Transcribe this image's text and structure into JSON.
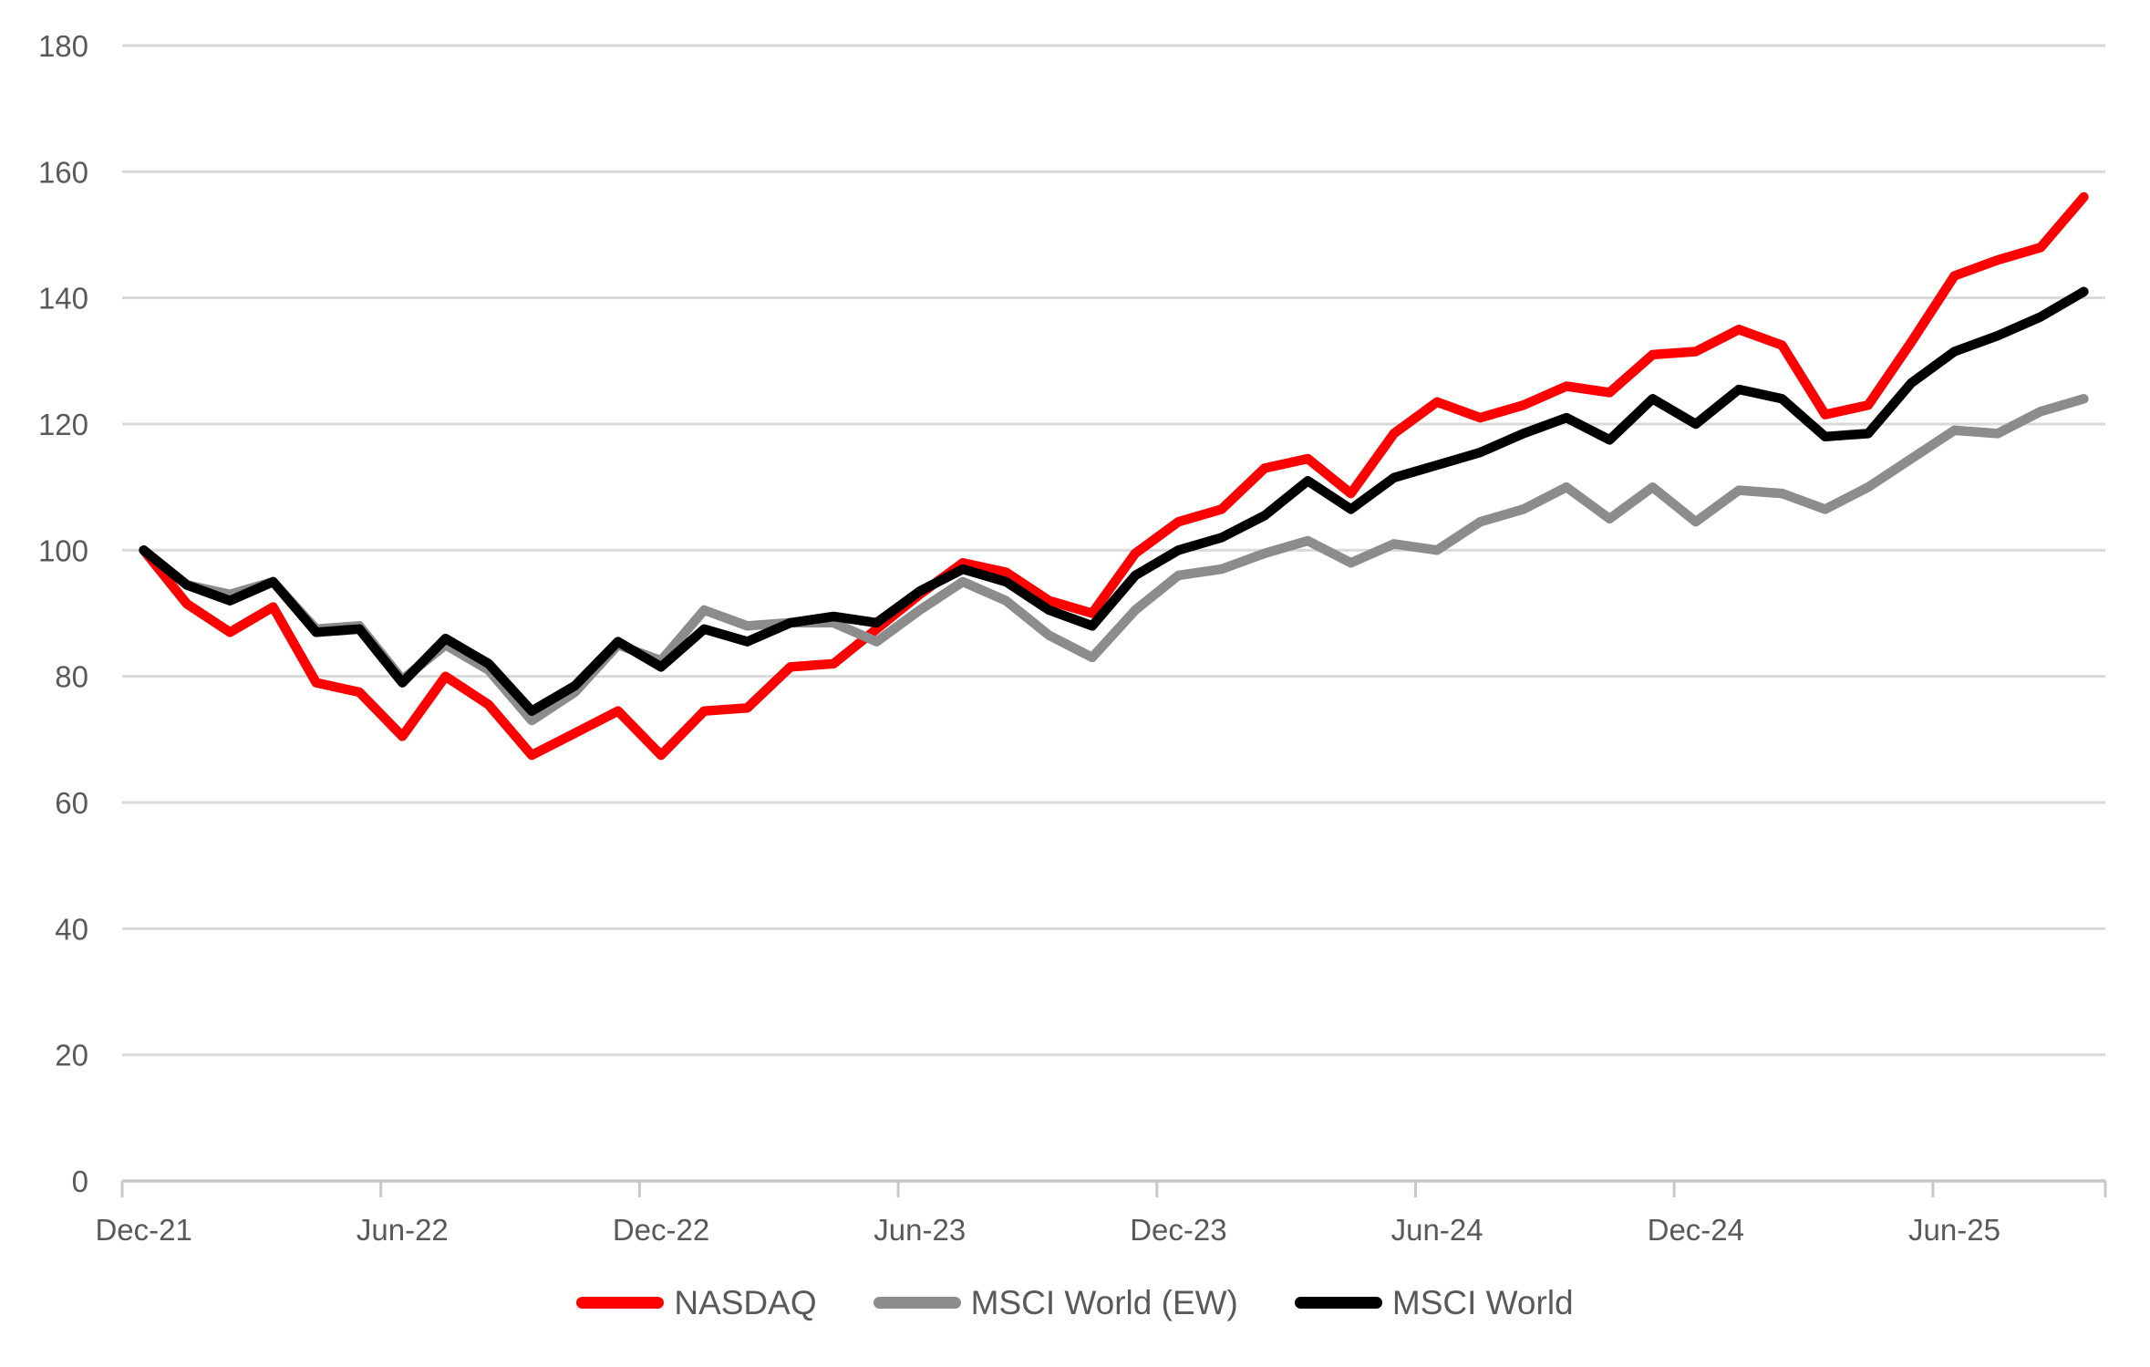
{
  "chart_data": {
    "type": "line",
    "categories": [
      "Dec-21",
      "Jan-22",
      "Feb-22",
      "Mar-22",
      "Apr-22",
      "May-22",
      "Jun-22",
      "Jul-22",
      "Aug-22",
      "Sep-22",
      "Oct-22",
      "Nov-22",
      "Dec-22",
      "Jan-23",
      "Feb-23",
      "Mar-23",
      "Apr-23",
      "May-23",
      "Jun-23",
      "Jul-23",
      "Aug-23",
      "Sep-23",
      "Oct-23",
      "Nov-23",
      "Dec-23",
      "Jan-24",
      "Feb-24",
      "Mar-24",
      "Apr-24",
      "May-24",
      "Jun-24",
      "Jul-24",
      "Aug-24",
      "Sep-24",
      "Oct-24",
      "Nov-24",
      "Dec-24",
      "Jan-25",
      "Feb-25",
      "Mar-25",
      "Apr-25",
      "May-25",
      "Jun-25",
      "Jul-25",
      "Aug-25",
      "Sep-25"
    ],
    "x_axis": {
      "tick_labels": [
        "Dec-21",
        "Jun-22",
        "Dec-22",
        "Jun-23",
        "Dec-23",
        "Jun-24",
        "Dec-24",
        "Jun-25"
      ],
      "label_every": 6
    },
    "y_axis": {
      "min": 0,
      "max": 180,
      "tick_step": 20,
      "tick_labels": [
        "0",
        "20",
        "40",
        "60",
        "80",
        "100",
        "120",
        "140",
        "160",
        "180"
      ]
    },
    "grid": "horizontal",
    "legend_position": "bottom",
    "colors": {
      "gridline": "#d9d9d9",
      "axis_line": "#c8c8c8",
      "axis_text": "#595959"
    },
    "series": [
      {
        "id": "nasdaq",
        "name": "NASDAQ",
        "color": "#ff0000",
        "values": [
          100,
          91.5,
          87,
          91,
          79,
          77.5,
          70.5,
          80,
          75.5,
          67.5,
          71,
          74.5,
          67.5,
          74.5,
          75,
          81.5,
          82,
          87.5,
          93,
          98,
          96.5,
          92,
          90,
          99.5,
          104.5,
          106.5,
          113,
          114.5,
          109,
          118.5,
          123.5,
          121,
          123,
          126,
          125,
          131,
          131.5,
          135,
          132.5,
          121.5,
          123,
          133,
          143.5,
          146,
          148,
          156
        ]
      },
      {
        "id": "msci-world-ew",
        "name": "MSCI World (EW)",
        "color": "#8c8c8c",
        "values": [
          100,
          94.5,
          93,
          95,
          87.5,
          88,
          79.5,
          85,
          81,
          73,
          77.5,
          85,
          82.5,
          90.5,
          88,
          88.5,
          88.5,
          85.5,
          90.5,
          95,
          92,
          86.5,
          83,
          90.5,
          96,
          97,
          99.5,
          101.5,
          98,
          101,
          100,
          104.5,
          106.5,
          110,
          105,
          110,
          104.5,
          109.5,
          109,
          106.5,
          110,
          114.5,
          119,
          118.5,
          122,
          124
        ]
      },
      {
        "id": "msci-world",
        "name": "MSCI World",
        "color": "#000000",
        "values": [
          100,
          94.5,
          92,
          95,
          87,
          87.5,
          79,
          86,
          82,
          74.5,
          78.5,
          85.5,
          81.5,
          87.5,
          85.5,
          88.5,
          89.5,
          88.5,
          93.5,
          97,
          95,
          90.5,
          88,
          96,
          100,
          102,
          105.5,
          111,
          106.5,
          111.5,
          113.5,
          115.5,
          118.5,
          121,
          117.5,
          124,
          120,
          125.5,
          124,
          118,
          118.5,
          126.5,
          131.5,
          134,
          137,
          141
        ]
      }
    ]
  }
}
